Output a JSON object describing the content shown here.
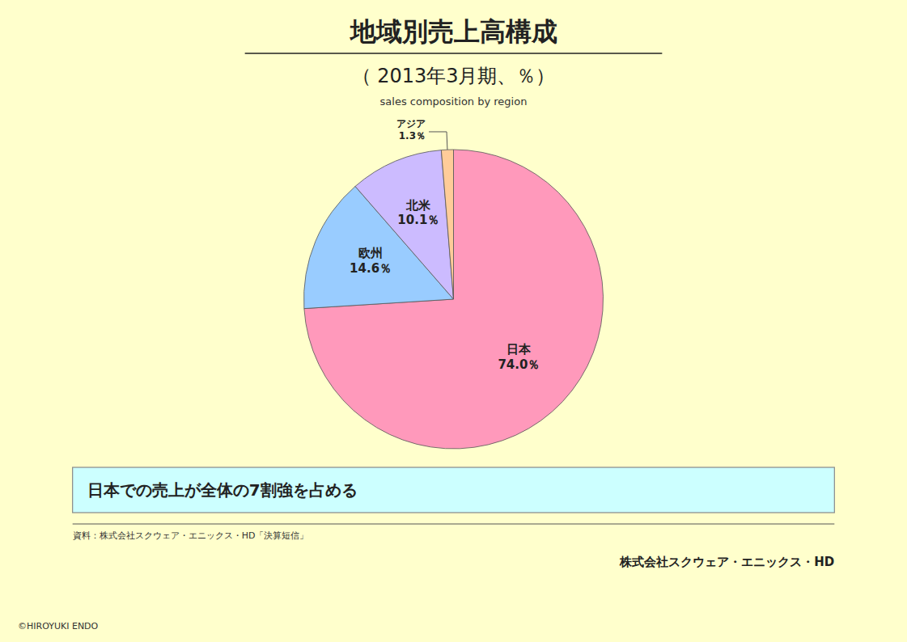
{
  "chart_data": {
    "type": "pie",
    "title": "地域別売上高構成",
    "subtitle": "（ 2013年3月期、％）",
    "annotations": [
      "sales composition by region",
      "日本での売上が全体の7割強を占める",
      "資料：株式会社スクウェア・エニックス・HD「決算短信」",
      "株式会社スクウェア・エニックス・HD",
      "©HIROYUKI ENDO"
    ],
    "categories": [
      "日本",
      "欧州",
      "北米",
      "アジア"
    ],
    "values": [
      74.0,
      14.6,
      10.1,
      1.3
    ],
    "value_labels": [
      "74.0％",
      "14.6％",
      "10.1％",
      "1.3％"
    ],
    "colors": [
      "#ff99bb",
      "#99ccff",
      "#ccbbff",
      "#ffcc99"
    ],
    "data_labels": true
  }
}
